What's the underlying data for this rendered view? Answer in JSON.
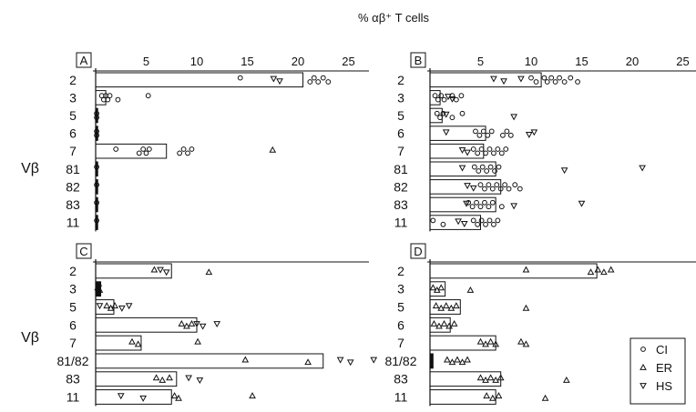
{
  "figure": {
    "title": "% αβ⁺ T cells",
    "y_axis_label": "Vβ",
    "legend": [
      {
        "symbol": "circle",
        "label": "CI"
      },
      {
        "symbol": "triangle-up",
        "label": "ER"
      },
      {
        "symbol": "triangle-down",
        "label": "HS"
      }
    ]
  },
  "chart_data": [
    {
      "panel": "A",
      "type": "bar",
      "orientation": "horizontal",
      "x_ticks": [
        5,
        10,
        15,
        20,
        25
      ],
      "xlim": [
        0,
        30
      ],
      "grid": false,
      "categories": [
        "2",
        "3",
        "5",
        "6",
        "7",
        "81",
        "82",
        "83",
        "11"
      ],
      "bar_values": [
        20.5,
        1.0,
        0.2,
        0.2,
        7.0,
        0.2,
        0.2,
        0.2,
        0.2
      ],
      "points": [
        {
          "cat": "2",
          "CI": [
            14.3,
            21.2,
            21.6,
            22.0,
            22.5,
            23.0
          ],
          "ER": [],
          "HS": [
            17.6,
            18.2
          ]
        },
        {
          "cat": "3",
          "CI": [
            0.6,
            0.8,
            1.0,
            1.2,
            1.4,
            2.2,
            5.2
          ],
          "ER": [],
          "HS": []
        },
        {
          "cat": "5",
          "CI": [
            0.1,
            0.1
          ],
          "ER": [],
          "HS": []
        },
        {
          "cat": "6",
          "CI": [
            0.1,
            0.1
          ],
          "ER": [],
          "HS": []
        },
        {
          "cat": "7",
          "CI": [
            2.0,
            4.3,
            4.7,
            5.0,
            5.3,
            8.3,
            8.7,
            9.1,
            9.5
          ],
          "ER": [
            17.5
          ],
          "HS": []
        },
        {
          "cat": "81",
          "CI": [
            0.1
          ],
          "ER": [],
          "HS": []
        },
        {
          "cat": "82",
          "CI": [
            0.1
          ],
          "ER": [],
          "HS": []
        },
        {
          "cat": "83",
          "CI": [
            0.1
          ],
          "ER": [],
          "HS": []
        },
        {
          "cat": "11",
          "CI": [
            0.1
          ],
          "ER": [],
          "HS": []
        }
      ]
    },
    {
      "panel": "B",
      "type": "bar",
      "orientation": "horizontal",
      "x_ticks": [
        5,
        10,
        15,
        20,
        25
      ],
      "xlim": [
        0,
        30
      ],
      "grid": false,
      "categories": [
        "2",
        "3",
        "5",
        "6",
        "7",
        "81",
        "82",
        "83",
        "11"
      ],
      "bar_values": [
        11.0,
        1.0,
        1.2,
        5.5,
        5.3,
        6.5,
        7.0,
        6.5,
        5.0
      ],
      "points": [
        {
          "cat": "2",
          "CI": [
            10.0,
            10.5,
            11.3,
            11.6,
            12.0,
            12.4,
            12.8,
            13.3,
            13.9,
            14.6
          ],
          "ER": [],
          "HS": [
            6.3,
            7.3,
            9.0
          ]
        },
        {
          "cat": "3",
          "CI": [
            0.5,
            0.8,
            1.1,
            1.4,
            2.2,
            2.6,
            3.1
          ],
          "ER": [],
          "HS": [
            1.8,
            2.2
          ]
        },
        {
          "cat": "5",
          "CI": [
            0.7,
            1.0,
            1.3,
            2.2,
            3.2
          ],
          "ER": [],
          "HS": [
            1.6,
            8.3
          ]
        },
        {
          "cat": "6",
          "CI": [
            4.5,
            4.9,
            5.3,
            5.7,
            6.1,
            7.2,
            7.6,
            8.0
          ],
          "ER": [],
          "HS": [
            1.6,
            9.8,
            10.3
          ]
        },
        {
          "cat": "7",
          "CI": [
            4.3,
            4.7,
            5.1,
            5.5,
            5.9,
            6.3,
            6.7,
            7.1,
            7.5
          ],
          "ER": [],
          "HS": [
            3.2,
            3.7
          ]
        },
        {
          "cat": "81",
          "CI": [
            4.4,
            4.8,
            5.2,
            5.6,
            6.0,
            6.4,
            6.8
          ],
          "ER": [],
          "HS": [
            3.2,
            13.3,
            21.0
          ]
        },
        {
          "cat": "82",
          "CI": [
            5.0,
            5.4,
            5.8,
            6.2,
            6.6,
            7.0,
            7.4,
            7.8,
            8.4,
            8.9
          ],
          "ER": [],
          "HS": [
            3.7,
            4.3
          ]
        },
        {
          "cat": "83",
          "CI": [
            3.8,
            4.2,
            4.6,
            5.0,
            5.4,
            5.8,
            6.2,
            7.1
          ],
          "ER": [],
          "HS": [
            3.6,
            8.3,
            15.0
          ]
        },
        {
          "cat": "11",
          "CI": [
            0.3,
            1.3,
            4.3,
            4.7,
            5.1,
            5.5,
            5.9,
            6.3,
            6.7
          ],
          "ER": [],
          "HS": [
            2.8,
            3.4
          ]
        }
      ]
    },
    {
      "panel": "C",
      "type": "bar",
      "orientation": "horizontal",
      "xlim": [
        0,
        30
      ],
      "grid": false,
      "categories": [
        "2",
        "3",
        "5",
        "6",
        "7",
        "81/82",
        "83",
        "11"
      ],
      "bar_values": [
        7.5,
        0.5,
        1.8,
        10.0,
        4.5,
        22.5,
        8.0,
        7.5
      ],
      "points": [
        {
          "cat": "2",
          "CI": [],
          "ER": [
            5.8,
            11.2
          ],
          "HS": [
            6.4,
            7.0
          ]
        },
        {
          "cat": "3",
          "CI": [],
          "ER": [
            0.2,
            0.4
          ],
          "HS": [
            0.3
          ]
        },
        {
          "cat": "5",
          "CI": [],
          "ER": [
            1.1,
            1.5,
            1.9
          ],
          "HS": [
            0.4,
            2.6,
            3.3
          ]
        },
        {
          "cat": "6",
          "CI": [],
          "ER": [
            8.5,
            9.0,
            9.5
          ],
          "HS": [
            10.0,
            10.6,
            12.0
          ]
        },
        {
          "cat": "7",
          "CI": [],
          "ER": [
            3.6,
            4.2,
            10.1
          ],
          "HS": []
        },
        {
          "cat": "81/82",
          "CI": [],
          "ER": [
            14.8,
            21.0
          ],
          "HS": [
            24.2,
            25.2,
            27.5
          ]
        },
        {
          "cat": "83",
          "CI": [],
          "ER": [
            6.0,
            6.6,
            7.3
          ],
          "HS": [
            9.2,
            10.3
          ]
        },
        {
          "cat": "11",
          "CI": [],
          "ER": [
            7.8,
            8.2,
            15.5
          ],
          "HS": [
            2.5,
            4.7
          ]
        }
      ]
    },
    {
      "panel": "D",
      "type": "bar",
      "orientation": "horizontal",
      "xlim": [
        0,
        30
      ],
      "grid": false,
      "categories": [
        "2",
        "3",
        "5",
        "6",
        "7",
        "81/82",
        "83",
        "11"
      ],
      "bar_values": [
        16.5,
        1.5,
        3.0,
        2.0,
        6.5,
        0.3,
        7.0,
        6.5
      ],
      "points": [
        {
          "cat": "2",
          "CI": [],
          "ER": [
            9.5,
            15.9,
            16.6,
            17.2,
            17.9
          ],
          "HS": []
        },
        {
          "cat": "3",
          "CI": [],
          "ER": [
            0.3,
            0.7,
            1.1,
            4.0
          ],
          "HS": []
        },
        {
          "cat": "5",
          "CI": [],
          "ER": [
            0.6,
            1.1,
            1.6,
            2.1,
            2.6,
            9.5
          ],
          "HS": []
        },
        {
          "cat": "6",
          "CI": [],
          "ER": [
            0.4,
            0.9,
            1.4,
            1.9,
            2.4
          ],
          "HS": []
        },
        {
          "cat": "7",
          "CI": [],
          "ER": [
            5.0,
            5.5,
            6.0,
            6.5,
            9.0,
            9.5
          ],
          "HS": []
        },
        {
          "cat": "81/82",
          "CI": [],
          "ER": [
            1.7,
            2.2,
            2.7,
            3.2,
            3.7
          ],
          "HS": []
        },
        {
          "cat": "83",
          "CI": [],
          "ER": [
            5.0,
            5.5,
            6.0,
            6.5,
            7.0,
            13.5
          ],
          "HS": []
        },
        {
          "cat": "11",
          "CI": [],
          "ER": [
            5.6,
            6.2,
            6.8,
            11.4
          ],
          "HS": []
        }
      ]
    }
  ]
}
